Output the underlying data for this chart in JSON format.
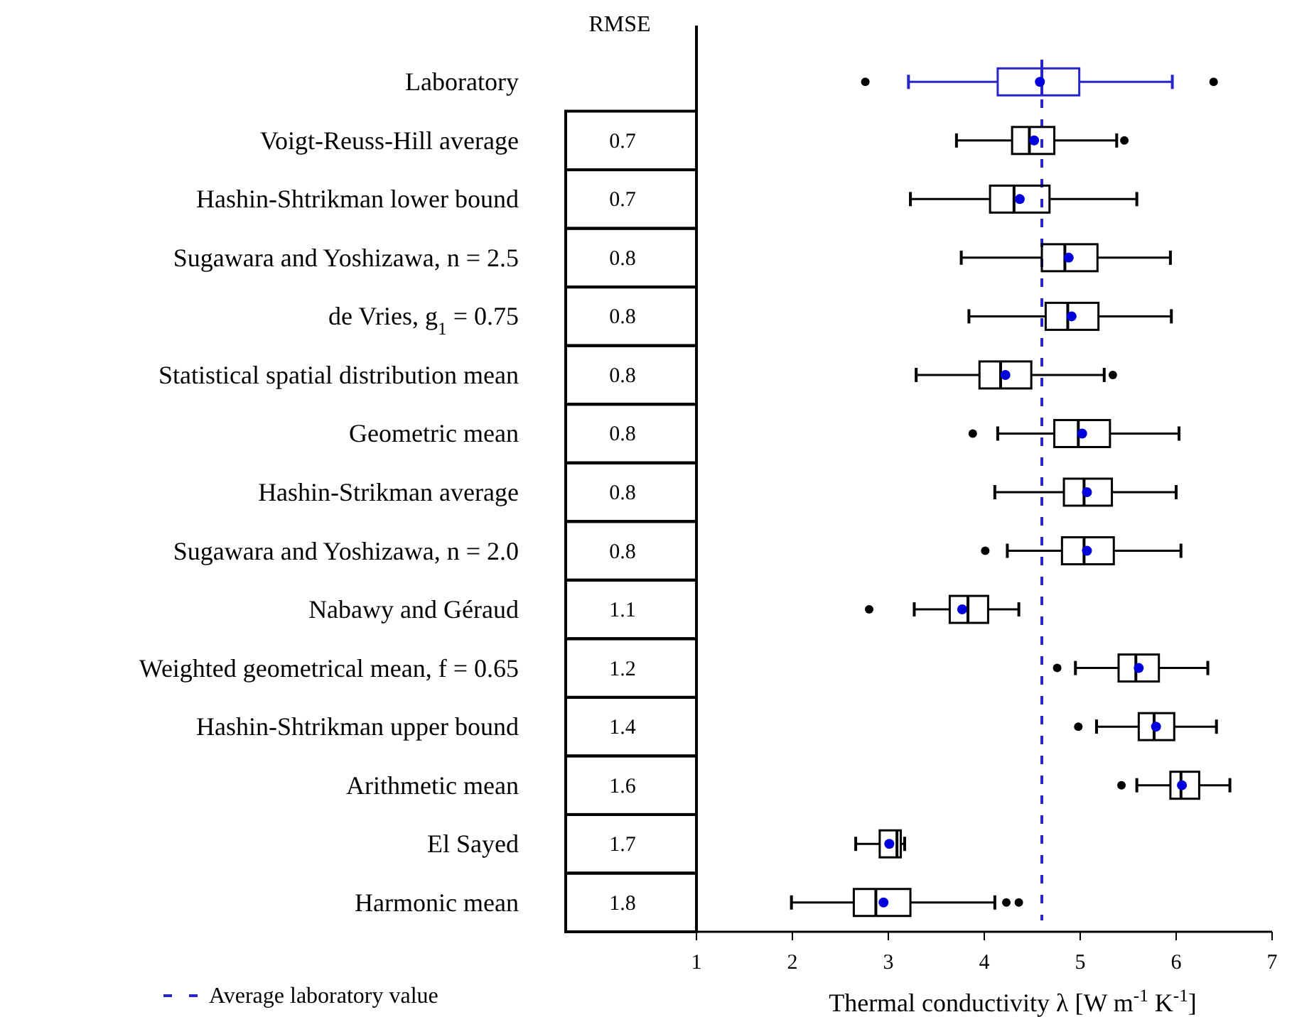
{
  "chart_data": [
    {
      "type": "box",
      "orientation": "horizontal",
      "xlabel": "Thermal conductivity λ [W m$^{-1}$ K$^{-1}$]",
      "categories": [
        "Laboratory",
        "Voigt-Reuss-Hill average",
        "Hashin-Shtrikman lower bound",
        "Sugawara and Yoshizawa, n = 2.5",
        "de Vries, g$_{1}$ = 0.75",
        "Statistical spatial distribution mean",
        "Geometric mean",
        "Hashin-Strikman average",
        "Sugawara and Yoshizawa, n = 2.0",
        "Nabawy and Géraud",
        "Weighted geometrical mean, f = 0.65",
        "Hashin-Shtrikman upper bound",
        "Arithmetic mean",
        "El Sayed",
        "Harmonic mean"
      ],
      "colors": [
        "#2626c8",
        "#000000",
        "#000000",
        "#000000",
        "#000000",
        "#000000",
        "#000000",
        "#000000",
        "#000000",
        "#000000",
        "#000000",
        "#000000",
        "#000000",
        "#000000",
        "#000000"
      ],
      "boxes": [
        {
          "low": 3.21,
          "q1": 4.14,
          "median": 4.6,
          "q3": 4.99,
          "high": 5.96,
          "mean": 4.58,
          "outliers": [
            2.76,
            6.39
          ]
        },
        {
          "low": 3.71,
          "q1": 4.29,
          "median": 4.47,
          "q3": 4.73,
          "high": 5.38,
          "mean": 4.52,
          "outliers": [
            5.46
          ]
        },
        {
          "low": 3.23,
          "q1": 4.06,
          "median": 4.31,
          "q3": 4.68,
          "high": 5.59,
          "mean": 4.37
        },
        {
          "low": 3.76,
          "q1": 4.6,
          "median": 4.84,
          "q3": 5.18,
          "high": 5.94,
          "mean": 4.88
        },
        {
          "low": 3.84,
          "q1": 4.64,
          "median": 4.87,
          "q3": 5.19,
          "high": 5.95,
          "mean": 4.91
        },
        {
          "low": 3.29,
          "q1": 3.95,
          "median": 4.17,
          "q3": 4.49,
          "high": 5.25,
          "mean": 4.22,
          "outliers": [
            5.34
          ]
        },
        {
          "low": 4.14,
          "q1": 4.73,
          "median": 4.98,
          "q3": 5.31,
          "high": 6.03,
          "mean": 5.02,
          "outliers": [
            3.88
          ]
        },
        {
          "low": 4.11,
          "q1": 4.83,
          "median": 5.04,
          "q3": 5.33,
          "high": 6.0,
          "mean": 5.07
        },
        {
          "low": 4.24,
          "q1": 4.81,
          "median": 5.04,
          "q3": 5.35,
          "high": 6.05,
          "mean": 5.07,
          "outliers": [
            4.01
          ]
        },
        {
          "low": 3.27,
          "q1": 3.64,
          "median": 3.83,
          "q3": 4.04,
          "high": 4.36,
          "mean": 3.77,
          "outliers": [
            2.8
          ]
        },
        {
          "low": 4.95,
          "q1": 5.4,
          "median": 5.58,
          "q3": 5.82,
          "high": 6.33,
          "mean": 5.61,
          "outliers": [
            4.76
          ]
        },
        {
          "low": 5.17,
          "q1": 5.61,
          "median": 5.77,
          "q3": 5.98,
          "high": 6.42,
          "mean": 5.79,
          "outliers": [
            4.98
          ]
        },
        {
          "low": 5.59,
          "q1": 5.94,
          "median": 6.05,
          "q3": 6.24,
          "high": 6.56,
          "mean": 6.06,
          "outliers": [
            5.43
          ]
        },
        {
          "low": 2.66,
          "q1": 2.91,
          "median": 3.09,
          "q3": 3.13,
          "high": 3.17,
          "mean": 3.01
        },
        {
          "low": 1.99,
          "q1": 2.64,
          "median": 2.87,
          "q3": 3.23,
          "high": 4.11,
          "mean": 2.95,
          "outliers": [
            4.23,
            4.36
          ]
        }
      ],
      "xlim": [
        1,
        7
      ],
      "xticks": [
        1,
        2,
        3,
        4,
        5,
        6,
        7
      ],
      "grid": false,
      "legend": "bottom left",
      "ref_lines": [
        {
          "axis": "x",
          "value": 4.6,
          "label": "Average laboratory value",
          "color": "#2626c8",
          "line_style": "dashed"
        }
      ]
    },
    {
      "type": "other",
      "title": "RMSE",
      "values": [
        null,
        0.7,
        0.7,
        0.8,
        0.8,
        0.8,
        0.8,
        0.8,
        0.8,
        1.1,
        1.2,
        1.4,
        1.6,
        1.7,
        1.8
      ],
      "data_labels": true
    }
  ]
}
